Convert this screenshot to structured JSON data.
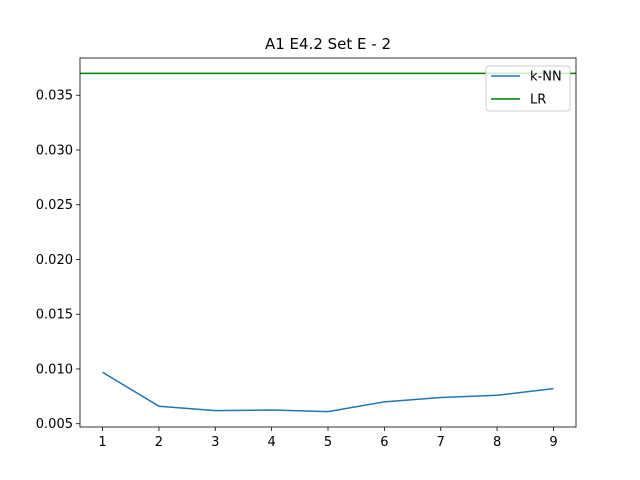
{
  "chart_data": {
    "type": "line",
    "title": "A1 E4.2 Set E - 2",
    "xlabel": "",
    "ylabel": "",
    "x": [
      1,
      2,
      3,
      4,
      5,
      6,
      7,
      8,
      9
    ],
    "xlim": [
      0.6,
      9.4
    ],
    "ylim": [
      0.0047,
      0.0384
    ],
    "x_ticks": [
      1,
      2,
      3,
      4,
      5,
      6,
      7,
      8,
      9
    ],
    "y_ticks": [
      0.005,
      0.01,
      0.015,
      0.02,
      0.025,
      0.03,
      0.035
    ],
    "y_tick_labels": [
      "0.005",
      "0.010",
      "0.015",
      "0.020",
      "0.025",
      "0.030",
      "0.035"
    ],
    "grid": false,
    "legend_position": "top-right",
    "series": [
      {
        "name": "k-NN",
        "color": "#1f77b4",
        "style": "line",
        "values": [
          0.0097,
          0.0066,
          0.0062,
          0.00625,
          0.0061,
          0.007,
          0.0074,
          0.0076,
          0.0082
        ]
      },
      {
        "name": "LR",
        "color": "#008000",
        "style": "hline",
        "value": 0.037
      }
    ]
  }
}
